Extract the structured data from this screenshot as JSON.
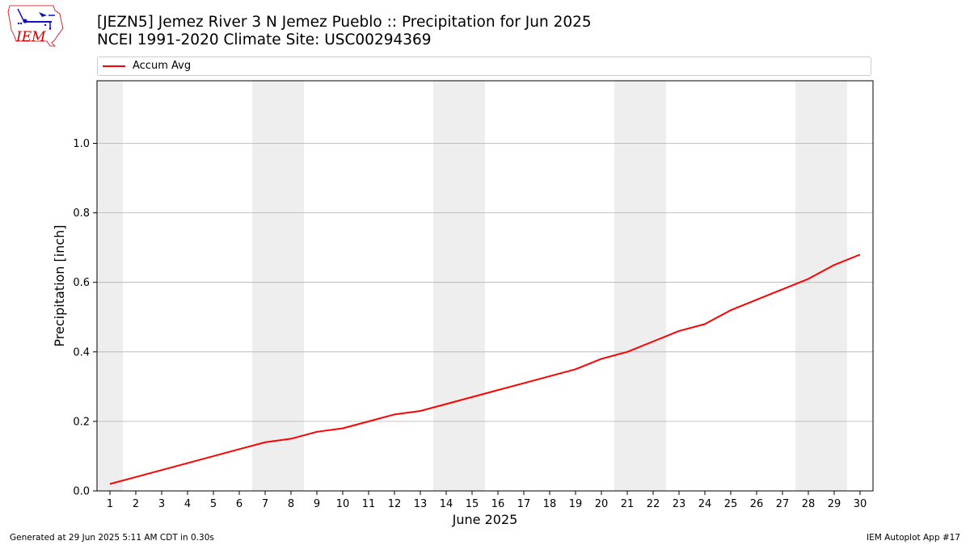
{
  "header": {
    "title_line1": "[JEZN5] Jemez River 3 N Jemez Pueblo :: Precipitation for Jun 2025",
    "title_line2": "NCEI 1991-2020 Climate Site: USC00294369",
    "logo_text": "IEM"
  },
  "legend": {
    "entries": [
      "Accum Avg"
    ]
  },
  "footer": {
    "left": "Generated at 29 Jun 2025 5:11 AM CDT in 0.30s",
    "right": "IEM Autoplot App #17"
  },
  "colors": {
    "series_line": "#ff0000",
    "weekend_shade": "#eeeeee",
    "grid": "#b0b0b0",
    "logo_red": "#cc0000",
    "logo_blue": "#1010c0"
  },
  "chart_data": {
    "type": "line",
    "title": "[JEZN5] Jemez River 3 N Jemez Pueblo :: Precipitation for Jun 2025",
    "subtitle": "NCEI 1991-2020 Climate Site: USC00294369",
    "xlabel": "June 2025",
    "ylabel": "Precipitation [inch]",
    "x": [
      1,
      2,
      3,
      4,
      5,
      6,
      7,
      8,
      9,
      10,
      11,
      12,
      13,
      14,
      15,
      16,
      17,
      18,
      19,
      20,
      21,
      22,
      23,
      24,
      25,
      26,
      27,
      28,
      29,
      30
    ],
    "x_tick_labels": [
      "1",
      "2",
      "3",
      "4",
      "5",
      "6",
      "7",
      "8",
      "9",
      "10",
      "11",
      "12",
      "13",
      "14",
      "15",
      "16",
      "17",
      "18",
      "19",
      "20",
      "21",
      "22",
      "23",
      "24",
      "25",
      "26",
      "27",
      "28",
      "29",
      "30"
    ],
    "y_ticks": [
      0.0,
      0.2,
      0.4,
      0.6,
      0.8,
      1.0
    ],
    "y_tick_labels": [
      "0.0",
      "0.2",
      "0.4",
      "0.6",
      "0.8",
      "1.0"
    ],
    "xlim": [
      0.5,
      30.5
    ],
    "ylim": [
      0,
      1.18
    ],
    "grid": "horizontal",
    "legend_position": "top",
    "weekend_days": [
      1,
      7,
      8,
      14,
      15,
      21,
      22,
      28,
      29
    ],
    "series": [
      {
        "name": "Accum Avg",
        "color": "#ff0000",
        "values": [
          0.02,
          0.04,
          0.06,
          0.08,
          0.1,
          0.12,
          0.14,
          0.15,
          0.17,
          0.18,
          0.2,
          0.22,
          0.23,
          0.25,
          0.27,
          0.29,
          0.31,
          0.33,
          0.35,
          0.38,
          0.4,
          0.43,
          0.46,
          0.48,
          0.52,
          0.55,
          0.58,
          0.61,
          0.65,
          0.68
        ]
      }
    ]
  }
}
